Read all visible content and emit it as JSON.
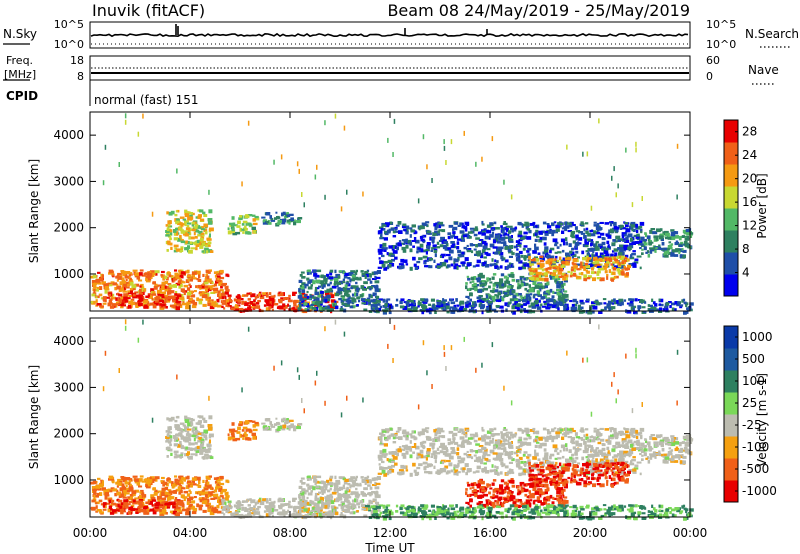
{
  "header": {
    "station": "Inuvik (fitACF)",
    "beam_date": "Beam 08 24/May/2019 - 25/May/2019"
  },
  "panels": {
    "nsky": {
      "label": "N.Sky",
      "ticks_left": [
        "10^5",
        "10^0"
      ],
      "ticks_right": [
        "10^5",
        "10^0"
      ],
      "right_label": "N.Search"
    },
    "freq": {
      "label": "Freq.",
      "unit": "[MHz]",
      "ticks_left": [
        "18",
        "8"
      ],
      "ticks_right": [
        "60",
        "0"
      ],
      "right_label": "Nave"
    },
    "cpid": {
      "label": "CPID",
      "value": "normal (fast) 151"
    }
  },
  "colors": {
    "power": [
      "#0000ee",
      "#1f4fa8",
      "#2e8060",
      "#52b866",
      "#c8d832",
      "#f59a12",
      "#f06018",
      "#e80000"
    ],
    "velocity": [
      "#e80000",
      "#f06018",
      "#f5a010",
      "#bcbcb0",
      "#7ad858",
      "#2e8060",
      "#1e5aa0",
      "#0a3aa8"
    ]
  },
  "chart_data": [
    {
      "type": "heatmap",
      "title": "Power",
      "xlabel": "Time UT",
      "ylabel": "Slant Range [km]",
      "x_ticks": [
        "00:00",
        "04:00",
        "08:00",
        "12:00",
        "16:00",
        "20:00",
        "00:00"
      ],
      "y_ticks": [
        1000,
        2000,
        3000,
        4000
      ],
      "xlim": [
        0,
        24
      ],
      "ylim": [
        200,
        4500
      ],
      "colorbar": {
        "label": "Power [dB]",
        "ticks": [
          4,
          8,
          12,
          16,
          20,
          24,
          28
        ],
        "range": [
          0,
          30
        ]
      },
      "regions": [
        {
          "t": [
            0,
            5.5
          ],
          "r": [
            300,
            1100
          ],
          "level": 24
        },
        {
          "t": [
            0.5,
            3.5
          ],
          "r": [
            300,
            600
          ],
          "level": 28
        },
        {
          "t": [
            5.2,
            9.8
          ],
          "r": [
            220,
            620
          ],
          "level": 28
        },
        {
          "t": [
            3,
            4.8
          ],
          "r": [
            1500,
            2400
          ],
          "level": 18
        },
        {
          "t": [
            5.5,
            6.6
          ],
          "r": [
            1900,
            2300
          ],
          "level": 16
        },
        {
          "t": [
            6.8,
            8.3
          ],
          "r": [
            2100,
            2350
          ],
          "level": 10
        },
        {
          "t": [
            8.3,
            11.5
          ],
          "r": [
            250,
            1100
          ],
          "level": 8
        },
        {
          "t": [
            11.5,
            22
          ],
          "r": [
            1150,
            2150
          ],
          "level": 6
        },
        {
          "t": [
            15,
            19
          ],
          "r": [
            450,
            1050
          ],
          "level": 10
        },
        {
          "t": [
            17.5,
            21.5
          ],
          "r": [
            900,
            1400
          ],
          "level": 22
        },
        {
          "t": [
            11,
            24
          ],
          "r": [
            200,
            480
          ],
          "level": 6
        },
        {
          "t": [
            22,
            24
          ],
          "r": [
            1400,
            2000
          ],
          "level": 10
        }
      ]
    },
    {
      "type": "heatmap",
      "title": "Velocity",
      "xlabel": "Time UT",
      "ylabel": "Slant Range [km]",
      "x_ticks": [
        "00:00",
        "04:00",
        "08:00",
        "12:00",
        "16:00",
        "20:00",
        "00:00"
      ],
      "y_ticks": [
        1000,
        2000,
        3000,
        4000
      ],
      "xlim": [
        0,
        24
      ],
      "ylim": [
        200,
        4500
      ],
      "colorbar": {
        "label": "Velocity [m s-1]",
        "ticks": [
          1000,
          500,
          100,
          25,
          -25,
          -100,
          -500,
          -1000
        ]
      },
      "regions": [
        {
          "t": [
            0,
            5.5
          ],
          "r": [
            300,
            1100
          ],
          "level": -100
        },
        {
          "t": [
            0.5,
            3.5
          ],
          "r": [
            300,
            600
          ],
          "level": -500
        },
        {
          "t": [
            5.2,
            9.8
          ],
          "r": [
            220,
            620
          ],
          "level": 0
        },
        {
          "t": [
            3,
            4.8
          ],
          "r": [
            1500,
            2400
          ],
          "level": 0
        },
        {
          "t": [
            5.5,
            6.6
          ],
          "r": [
            1900,
            2300
          ],
          "level": -100
        },
        {
          "t": [
            6.8,
            8.3
          ],
          "r": [
            2100,
            2350
          ],
          "level": 0
        },
        {
          "t": [
            8.3,
            11.5
          ],
          "r": [
            250,
            1100
          ],
          "level": 0
        },
        {
          "t": [
            11.5,
            22
          ],
          "r": [
            1150,
            2150
          ],
          "level": 0
        },
        {
          "t": [
            15,
            19
          ],
          "r": [
            450,
            1050
          ],
          "level": -500
        },
        {
          "t": [
            17.5,
            21.5
          ],
          "r": [
            900,
            1400
          ],
          "level": -500
        },
        {
          "t": [
            11,
            24
          ],
          "r": [
            200,
            480
          ],
          "level": 100
        },
        {
          "t": [
            22,
            24
          ],
          "r": [
            1400,
            2000
          ],
          "level": 0
        }
      ]
    }
  ]
}
